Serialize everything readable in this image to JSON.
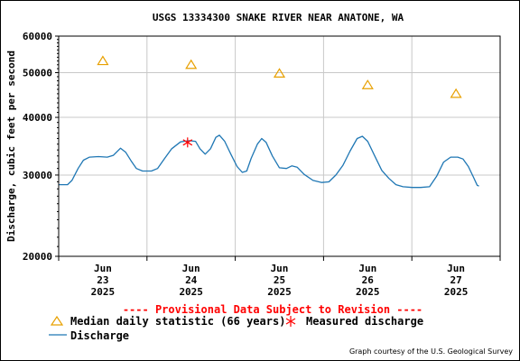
{
  "chart_data": {
    "type": "line",
    "title": "USGS 13334300 SNAKE RIVER NEAR ANATONE, WA",
    "ylabel": "Discharge, cubic feet per second",
    "xlabel": "",
    "y_scale": "log",
    "ylim": [
      20000,
      60000
    ],
    "y_ticks": [
      {
        "value": 20000,
        "label": "20000"
      },
      {
        "value": 30000,
        "label": "30000"
      },
      {
        "value": 40000,
        "label": "40000"
      },
      {
        "value": 50000,
        "label": "50000"
      },
      {
        "value": 60000,
        "label": "60000"
      }
    ],
    "xlim": [
      0,
      5
    ],
    "x_ticks": [
      {
        "value": 0.5,
        "month": "Jun",
        "day": "23",
        "year": "2025"
      },
      {
        "value": 1.5,
        "month": "Jun",
        "day": "24",
        "year": "2025"
      },
      {
        "value": 2.5,
        "month": "Jun",
        "day": "25",
        "year": "2025"
      },
      {
        "value": 3.5,
        "month": "Jun",
        "day": "26",
        "year": "2025"
      },
      {
        "value": 4.5,
        "month": "Jun",
        "day": "27",
        "year": "2025"
      }
    ],
    "grid": true,
    "series": [
      {
        "name": "Discharge",
        "kind": "line",
        "color": "#1f77b4",
        "points": [
          [
            0.0,
            28600
          ],
          [
            0.1,
            28600
          ],
          [
            0.15,
            29200
          ],
          [
            0.22,
            31000
          ],
          [
            0.28,
            32300
          ],
          [
            0.35,
            32800
          ],
          [
            0.45,
            32900
          ],
          [
            0.55,
            32800
          ],
          [
            0.62,
            33100
          ],
          [
            0.7,
            34300
          ],
          [
            0.76,
            33600
          ],
          [
            0.82,
            32200
          ],
          [
            0.88,
            31000
          ],
          [
            0.95,
            30600
          ],
          [
            1.05,
            30600
          ],
          [
            1.12,
            31000
          ],
          [
            1.2,
            32600
          ],
          [
            1.28,
            34200
          ],
          [
            1.38,
            35400
          ],
          [
            1.48,
            35600
          ],
          [
            1.55,
            35500
          ],
          [
            1.6,
            34200
          ],
          [
            1.66,
            33300
          ],
          [
            1.72,
            34200
          ],
          [
            1.78,
            36200
          ],
          [
            1.82,
            36600
          ],
          [
            1.88,
            35500
          ],
          [
            1.95,
            33300
          ],
          [
            2.02,
            31300
          ],
          [
            2.08,
            30400
          ],
          [
            2.13,
            30600
          ],
          [
            2.18,
            32600
          ],
          [
            2.25,
            35000
          ],
          [
            2.3,
            36000
          ],
          [
            2.35,
            35300
          ],
          [
            2.42,
            33000
          ],
          [
            2.5,
            31100
          ],
          [
            2.58,
            31000
          ],
          [
            2.64,
            31400
          ],
          [
            2.7,
            31200
          ],
          [
            2.78,
            30100
          ],
          [
            2.88,
            29200
          ],
          [
            2.98,
            28900
          ],
          [
            3.06,
            29000
          ],
          [
            3.14,
            30000
          ],
          [
            3.22,
            31500
          ],
          [
            3.3,
            33800
          ],
          [
            3.38,
            36000
          ],
          [
            3.44,
            36400
          ],
          [
            3.5,
            35500
          ],
          [
            3.58,
            33000
          ],
          [
            3.66,
            30700
          ],
          [
            3.74,
            29500
          ],
          [
            3.82,
            28600
          ],
          [
            3.9,
            28300
          ],
          [
            4.0,
            28200
          ],
          [
            4.1,
            28200
          ],
          [
            4.2,
            28300
          ],
          [
            4.28,
            29800
          ],
          [
            4.36,
            32000
          ],
          [
            4.44,
            32800
          ],
          [
            4.52,
            32800
          ],
          [
            4.58,
            32500
          ],
          [
            4.64,
            31300
          ],
          [
            4.7,
            29600
          ],
          [
            4.74,
            28500
          ],
          [
            4.76,
            28400
          ]
        ]
      },
      {
        "name": "Median daily statistic (66 years)",
        "kind": "marker",
        "marker": "triangle",
        "color": "#e8a000",
        "points": [
          [
            0.5,
            53000
          ],
          [
            1.5,
            52000
          ],
          [
            2.5,
            49800
          ],
          [
            3.5,
            47000
          ],
          [
            4.5,
            45000
          ]
        ]
      },
      {
        "name": "Measured discharge",
        "kind": "marker",
        "marker": "star",
        "color": "#ff0000",
        "points": [
          [
            1.46,
            35300
          ]
        ]
      }
    ],
    "annotation": "---- Provisional Data Subject to Revision ----",
    "legend": {
      "position": "bottom",
      "entries": [
        {
          "label": "Median daily statistic (66 years)",
          "symbol": "triangle",
          "color": "#e8a000"
        },
        {
          "label": "Measured discharge",
          "symbol": "star",
          "color": "#ff0000"
        },
        {
          "label": "Discharge",
          "symbol": "line",
          "color": "#1f77b4"
        }
      ]
    },
    "credit": "Graph courtesy of the U.S. Geological Survey"
  }
}
